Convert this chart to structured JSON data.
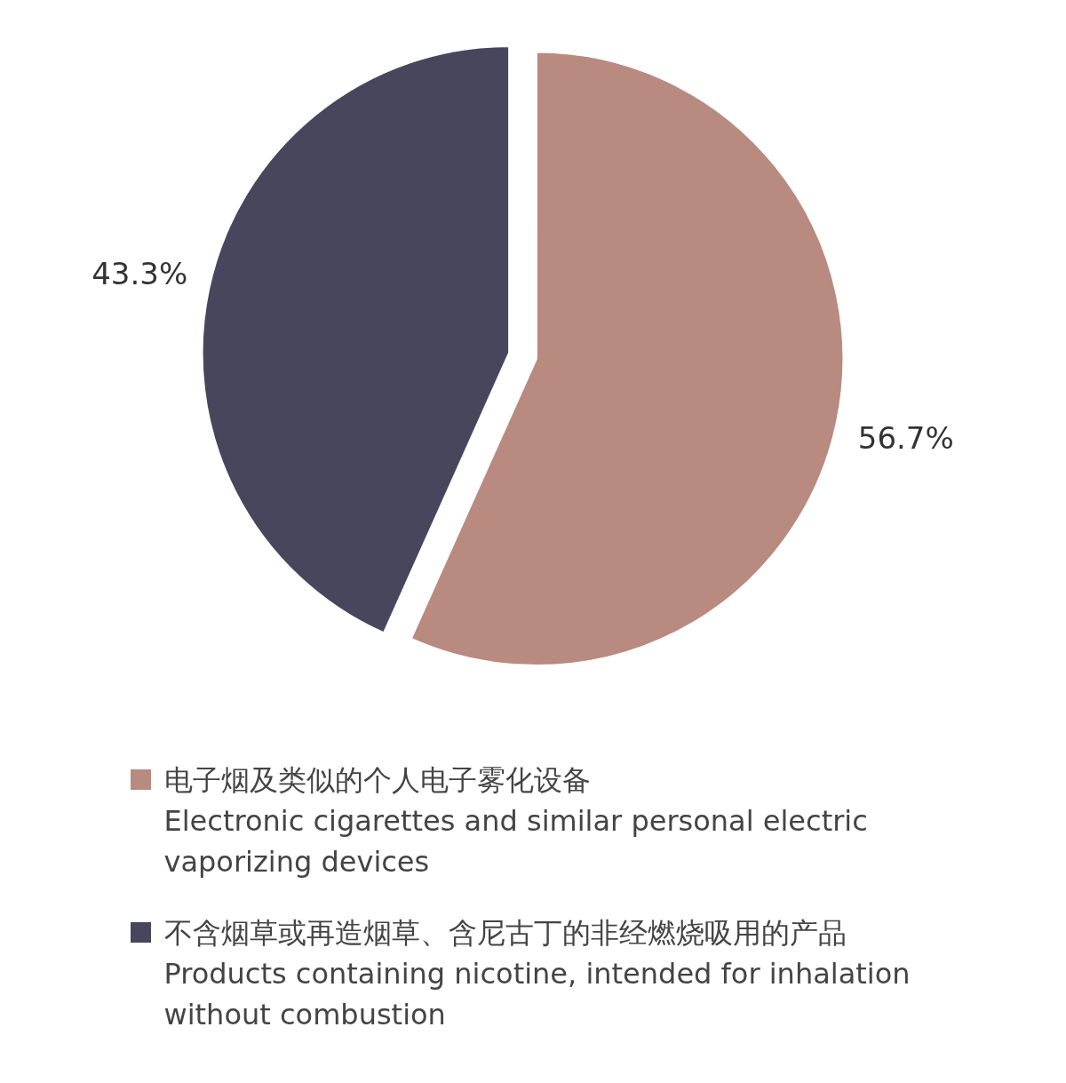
{
  "chart_data": {
    "type": "pie",
    "categories": [
      "电子烟及类似的个人电子雾化设备\nElectronic cigarettes and similar personal electric vaporizing devices",
      "不含烟草或再造烟草、含尼古丁的非经燃烧吸用的产品\nProducts containing nicotine, intended for inhalation without combustion"
    ],
    "values": [
      56.7,
      43.3
    ],
    "colors": [
      "#b88a80",
      "#48465c"
    ],
    "value_labels": [
      "56.7%",
      "43.3%"
    ],
    "legend": "bottom"
  }
}
